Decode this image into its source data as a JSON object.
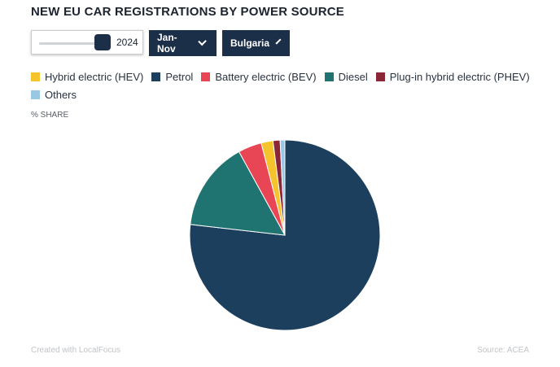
{
  "header": {
    "title": "NEW EU CAR REGISTRATIONS BY POWER SOURCE"
  },
  "controls": {
    "year_value": "2024",
    "period_label": "Jan-Nov",
    "country_label": "Bulgaria"
  },
  "legend": [
    {
      "label": "Hybrid electric (HEV)",
      "color": "#f5c32c"
    },
    {
      "label": "Petrol",
      "color": "#1c3f5e"
    },
    {
      "label": "Battery electric (BEV)",
      "color": "#e84655"
    },
    {
      "label": "Diesel",
      "color": "#1f7472"
    },
    {
      "label": "Plug-in hybrid electric (PHEV)",
      "color": "#8b2637"
    },
    {
      "label": "Others",
      "color": "#9ac7e3"
    }
  ],
  "unit_label": "% SHARE",
  "footer": {
    "credit": "Created with LocalFocus",
    "source": "Source:  ACEA"
  },
  "chart_data": {
    "type": "pie",
    "categories": [
      "Hybrid electric (HEV)",
      "Petrol",
      "Battery electric (BEV)",
      "Diesel",
      "Plug-in hybrid electric (PHEV)",
      "Others"
    ],
    "values": [
      2.0,
      76.8,
      4.0,
      15.2,
      1.2,
      0.8
    ],
    "colors": [
      "#f5c32c",
      "#1c3f5e",
      "#e84655",
      "#1f7472",
      "#8b2637",
      "#9ac7e3"
    ],
    "order_clockwise_from_top": [
      "Petrol",
      "Diesel",
      "Battery electric (BEV)",
      "Hybrid electric (HEV)",
      "Plug-in hybrid electric (PHEV)",
      "Others"
    ]
  }
}
